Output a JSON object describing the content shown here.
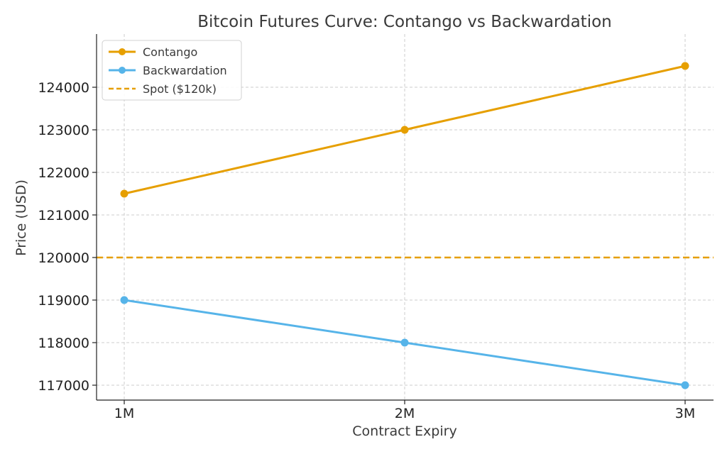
{
  "chart_data": {
    "type": "line",
    "title": "Bitcoin Futures Curve: Contango vs Backwardation",
    "xlabel": "Contract Expiry",
    "ylabel": "Price (USD)",
    "categories": [
      "1M",
      "2M",
      "3M"
    ],
    "ylim": [
      116650,
      125250
    ],
    "yticks": [
      117000,
      118000,
      119000,
      120000,
      121000,
      122000,
      123000,
      124000
    ],
    "grid": true,
    "legend_position": "top-left",
    "series": [
      {
        "name": "Contango",
        "values": [
          121500,
          123000,
          124500
        ],
        "color": "#E69F00",
        "style": "solid",
        "marker": "circle"
      },
      {
        "name": "Backwardation",
        "values": [
          119000,
          118000,
          117000
        ],
        "color": "#56B4E9",
        "style": "solid",
        "marker": "circle"
      }
    ],
    "reference_lines": [
      {
        "name": "Spot ($120k)",
        "value": 120000,
        "color": "#E69F00",
        "style": "dashed"
      }
    ]
  }
}
